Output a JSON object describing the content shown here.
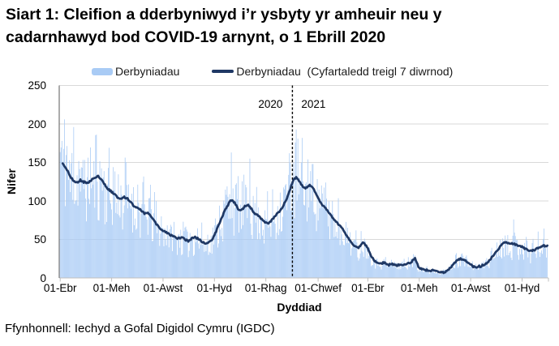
{
  "title": {
    "line1": "Siart 1: Cleifion a dderbyniwyd i’r ysbyty yr amheuir neu y",
    "line2": "cadarnhawyd bod COVID-19 arnynt, o 1 Ebrill 2020"
  },
  "legend": {
    "bars_label": "Derbyniadau",
    "line_label": "Derbyniadau  (Cyfartaledd treigl 7 diwrnod)"
  },
  "footer": {
    "source": "Ffynhonnell: Iechyd a Gofal Digidol Cymru (IGDC)"
  },
  "chart_data": {
    "type": "bar",
    "title": "Cleifion a dderbyniwyd i’r ysbyty yr amheuir neu y cadarnhawyd bod COVID-19 arnynt, o 1 Ebrill 2020",
    "xlabel": "Dyddiad",
    "ylabel": "Nifer",
    "ylim": [
      0,
      250
    ],
    "y_ticks": [
      0,
      50,
      100,
      150,
      200,
      250
    ],
    "grid": "horizontal",
    "legend_position": "top",
    "x_start_label": "01-Ebr-2020",
    "days_total": 578,
    "x_ticks": [
      {
        "day": 0,
        "label": "01-Ebr"
      },
      {
        "day": 61,
        "label": "01-Meh"
      },
      {
        "day": 122,
        "label": "01-Awst"
      },
      {
        "day": 183,
        "label": "01-Hyd"
      },
      {
        "day": 244,
        "label": "01-Rhag"
      },
      {
        "day": 306,
        "label": "01-Chwef"
      },
      {
        "day": 365,
        "label": "01-Ebr"
      },
      {
        "day": 426,
        "label": "01-Meh"
      },
      {
        "day": 487,
        "label": "01-Awst"
      },
      {
        "day": 548,
        "label": "01-Hyd"
      }
    ],
    "divider": {
      "day": 275.5,
      "left_label": "2020",
      "right_label": "2021"
    },
    "series": [
      {
        "name": "Derbyniadau",
        "type": "bar",
        "color": "#A9CBF5",
        "note": "daily admissions; bars scatter roughly ±40% around the 7-day rolling average"
      },
      {
        "name": "Derbyniadau (Cyfartaledd treigl 7 diwrnod)",
        "type": "line",
        "color": "#1F3864",
        "points": [
          [
            3,
            148
          ],
          [
            6,
            144
          ],
          [
            9,
            139
          ],
          [
            12,
            132
          ],
          [
            15,
            127
          ],
          [
            18,
            124
          ],
          [
            21,
            125
          ],
          [
            24,
            127
          ],
          [
            27,
            125
          ],
          [
            30,
            124
          ],
          [
            33,
            123
          ],
          [
            36,
            126
          ],
          [
            39,
            129
          ],
          [
            42,
            131
          ],
          [
            45,
            132
          ],
          [
            48,
            129
          ],
          [
            51,
            124
          ],
          [
            54,
            119
          ],
          [
            57,
            115
          ],
          [
            61,
            112
          ],
          [
            64,
            109
          ],
          [
            68,
            105
          ],
          [
            72,
            103
          ],
          [
            76,
            105
          ],
          [
            80,
            103
          ],
          [
            84,
            98
          ],
          [
            88,
            93
          ],
          [
            92,
            90
          ],
          [
            96,
            88
          ],
          [
            100,
            84
          ],
          [
            104,
            85
          ],
          [
            108,
            80
          ],
          [
            112,
            73
          ],
          [
            116,
            67
          ],
          [
            120,
            63
          ],
          [
            124,
            60
          ],
          [
            128,
            58
          ],
          [
            132,
            55
          ],
          [
            136,
            53
          ],
          [
            140,
            51
          ],
          [
            144,
            53
          ],
          [
            148,
            50
          ],
          [
            152,
            48
          ],
          [
            156,
            51
          ],
          [
            160,
            53
          ],
          [
            164,
            51
          ],
          [
            168,
            47
          ],
          [
            172,
            45
          ],
          [
            176,
            46
          ],
          [
            180,
            50
          ],
          [
            183,
            55
          ],
          [
            186,
            63
          ],
          [
            190,
            74
          ],
          [
            194,
            84
          ],
          [
            198,
            93
          ],
          [
            202,
            100
          ],
          [
            205,
            100
          ],
          [
            208,
            96
          ],
          [
            211,
            90
          ],
          [
            214,
            88
          ],
          [
            217,
            90
          ],
          [
            220,
            94
          ],
          [
            223,
            95
          ],
          [
            226,
            91
          ],
          [
            229,
            86
          ],
          [
            232,
            83
          ],
          [
            235,
            81
          ],
          [
            238,
            77
          ],
          [
            241,
            74
          ],
          [
            244,
            72
          ],
          [
            247,
            71
          ],
          [
            250,
            74
          ],
          [
            253,
            78
          ],
          [
            256,
            82
          ],
          [
            259,
            85
          ],
          [
            262,
            89
          ],
          [
            265,
            95
          ],
          [
            268,
            101
          ],
          [
            270,
            106
          ],
          [
            272,
            112
          ],
          [
            274,
            120
          ],
          [
            276,
            126
          ],
          [
            278,
            129
          ],
          [
            280,
            131
          ],
          [
            282,
            129
          ],
          [
            284,
            125
          ],
          [
            286,
            121
          ],
          [
            288,
            118
          ],
          [
            290,
            117
          ],
          [
            292,
            117
          ],
          [
            294,
            119
          ],
          [
            296,
            121
          ],
          [
            298,
            120
          ],
          [
            300,
            117
          ],
          [
            302,
            112
          ],
          [
            304,
            108
          ],
          [
            306,
            104
          ],
          [
            309,
            98
          ],
          [
            312,
            94
          ],
          [
            315,
            90
          ],
          [
            318,
            86
          ],
          [
            321,
            81
          ],
          [
            324,
            77
          ],
          [
            327,
            73
          ],
          [
            330,
            70
          ],
          [
            333,
            67
          ],
          [
            336,
            62
          ],
          [
            339,
            57
          ],
          [
            342,
            52
          ],
          [
            345,
            47
          ],
          [
            348,
            43
          ],
          [
            351,
            40
          ],
          [
            354,
            39
          ],
          [
            357,
            43
          ],
          [
            359,
            46
          ],
          [
            361,
            45
          ],
          [
            363,
            42
          ],
          [
            365,
            38
          ],
          [
            367,
            33
          ],
          [
            369,
            29
          ],
          [
            371,
            25
          ],
          [
            373,
            22
          ],
          [
            375,
            21
          ],
          [
            378,
            20
          ],
          [
            381,
            19
          ],
          [
            384,
            20
          ],
          [
            387,
            18
          ],
          [
            390,
            17
          ],
          [
            393,
            18
          ],
          [
            396,
            17
          ],
          [
            399,
            16
          ],
          [
            402,
            17
          ],
          [
            405,
            16
          ],
          [
            408,
            17
          ],
          [
            411,
            18
          ],
          [
            414,
            19
          ],
          [
            417,
            21
          ],
          [
            419,
            23
          ],
          [
            421,
            25
          ],
          [
            423,
            21
          ],
          [
            425,
            15
          ],
          [
            427,
            12
          ],
          [
            430,
            11
          ],
          [
            433,
            10
          ],
          [
            436,
            10
          ],
          [
            439,
            9
          ],
          [
            442,
            10
          ],
          [
            445,
            9
          ],
          [
            448,
            8
          ],
          [
            451,
            7
          ],
          [
            454,
            7
          ],
          [
            457,
            8
          ],
          [
            460,
            10
          ],
          [
            463,
            13
          ],
          [
            466,
            17
          ],
          [
            469,
            21
          ],
          [
            472,
            24
          ],
          [
            475,
            25
          ],
          [
            478,
            24
          ],
          [
            481,
            22
          ],
          [
            484,
            19
          ],
          [
            487,
            17
          ],
          [
            490,
            15
          ],
          [
            493,
            14
          ],
          [
            496,
            15
          ],
          [
            499,
            15
          ],
          [
            502,
            17
          ],
          [
            505,
            19
          ],
          [
            508,
            21
          ],
          [
            511,
            25
          ],
          [
            514,
            29
          ],
          [
            517,
            34
          ],
          [
            520,
            38
          ],
          [
            523,
            42
          ],
          [
            526,
            45
          ],
          [
            529,
            46
          ],
          [
            532,
            46
          ],
          [
            535,
            45
          ],
          [
            538,
            44
          ],
          [
            541,
            43
          ],
          [
            544,
            42
          ],
          [
            547,
            41
          ],
          [
            550,
            39
          ],
          [
            553,
            37
          ],
          [
            556,
            36
          ],
          [
            559,
            35
          ],
          [
            562,
            36
          ],
          [
            565,
            38
          ],
          [
            568,
            40
          ],
          [
            571,
            41
          ],
          [
            574,
            42
          ],
          [
            577,
            41
          ],
          [
            578,
            41
          ]
        ]
      }
    ],
    "bar_overrides": [
      [
        2,
        178
      ],
      [
        5,
        206
      ],
      [
        16,
        196
      ],
      [
        203,
        163
      ],
      [
        225,
        155
      ],
      [
        272,
        162
      ],
      [
        277,
        150
      ],
      [
        300,
        148
      ],
      [
        538,
        76
      ]
    ],
    "noise": {
      "seed": 11,
      "bar_amplitude": 0.42,
      "weekly_amplitude": 0.12,
      "line_wiggle": 1.1
    },
    "colors": {
      "bars": "#A9CBF5",
      "line": "#1F3864",
      "gridline": "#D9D9D9",
      "x_axis": "#BFBFBF",
      "y_axis": "#595959",
      "divider": "#000000",
      "text": "#000000"
    }
  }
}
